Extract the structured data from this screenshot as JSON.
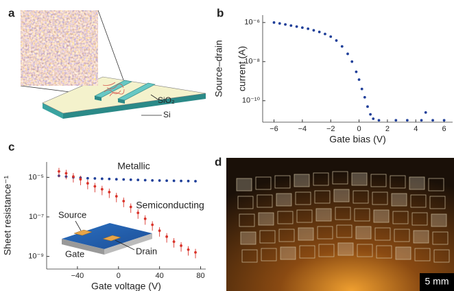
{
  "panel_labels": [
    "a",
    "b",
    "c",
    "d"
  ],
  "diagram_a": {
    "labels": [
      "SiO₂",
      "Si"
    ]
  },
  "inset_c": {
    "labels": [
      "Source",
      "Drain",
      "Gate"
    ]
  },
  "photo_d": {
    "scale_bar": "5 mm"
  },
  "chart_data": [
    {
      "type": "scatter",
      "log_y": true,
      "x_label": "Gate bias (V)",
      "y_label": [
        "Source–drain",
        "current (A)"
      ],
      "xlim": [
        -6.8,
        6.6
      ],
      "ylim": [
        8e-12,
        2.4e-06
      ],
      "xticks": [
        {
          "value": -6,
          "label": "−6"
        },
        {
          "value": -4,
          "label": "−4"
        },
        {
          "value": -2,
          "label": "−2"
        },
        0,
        2,
        4,
        6
      ],
      "yticks": [
        {
          "value": 1e-10,
          "label": "10⁻¹⁰"
        },
        {
          "value": 1e-08,
          "label": "10⁻⁸"
        },
        {
          "value": 1e-06,
          "label": "10⁻⁶"
        }
      ],
      "series": [
        {
          "color": "#1f3f99",
          "x": [
            -6,
            -5.6,
            -5.2,
            -4.8,
            -4.4,
            -4,
            -3.6,
            -3.2,
            -2.8,
            -2.4,
            -2,
            -1.6,
            -1.2,
            -0.8,
            -0.5,
            -0.2,
            0,
            0.2,
            0.4,
            0.6,
            0.8,
            1,
            1.4,
            2.6,
            3.4,
            4.4,
            4.7,
            5.2,
            6
          ],
          "values": [
            1e-06,
            9e-07,
            8e-07,
            7e-07,
            6.2e-07,
            5.5e-07,
            4.8e-07,
            4e-07,
            3.3e-07,
            2.6e-07,
            1.9e-07,
            1.2e-07,
            6e-08,
            2.5e-08,
            1e-08,
            3e-09,
            1.2e-09,
            4e-10,
            1.5e-10,
            5e-11,
            2e-11,
            1.2e-11,
            1e-11,
            1e-11,
            1e-11,
            1e-11,
            2.5e-11,
            1e-11,
            1e-11
          ]
        }
      ]
    },
    {
      "type": "scatter",
      "log_y": true,
      "x_label": "Gate voltage (V)",
      "y_label": [
        "Sheet resistance⁻¹"
      ],
      "xlim": [
        -70,
        85
      ],
      "ylim": [
        2.3e-10,
        6e-05
      ],
      "xticks": [
        {
          "value": -40,
          "label": "−40"
        },
        0,
        40,
        80
      ],
      "yticks": [
        {
          "value": 1e-09,
          "label": "10⁻⁹"
        },
        {
          "value": 1e-07,
          "label": "10⁻⁷"
        },
        {
          "value": 1e-05,
          "label": "10⁻⁵"
        }
      ],
      "series": [
        {
          "name": "Metallic",
          "color": "#1f3f99",
          "x": [
            -58,
            -51,
            -44,
            -37,
            -30,
            -23,
            -16,
            -9,
            -2,
            5,
            12,
            19,
            26,
            33,
            40,
            47,
            54,
            61,
            68,
            75
          ],
          "values": [
            1.2e-05,
            1.1e-05,
            1e-05,
            9.5e-06,
            9e-06,
            8.8e-06,
            8.5e-06,
            8.3e-06,
            8e-06,
            7.8e-06,
            7.6e-06,
            7.4e-06,
            7.2e-06,
            7e-06,
            6.9e-06,
            6.8e-06,
            6.7e-06,
            6.6e-06,
            6.5e-06,
            6.4e-06
          ]
        },
        {
          "name": "Semiconducting",
          "color": "#d9342b",
          "x": [
            -58,
            -51,
            -44,
            -37,
            -30,
            -23,
            -16,
            -9,
            -2,
            5,
            12,
            19,
            26,
            33,
            40,
            47,
            54,
            61,
            68,
            75
          ],
          "values": [
            2e-05,
            1.6e-05,
            1.1e-05,
            8e-06,
            5e-06,
            3.5e-06,
            2.5e-06,
            1.8e-06,
            1.1e-06,
            6.3e-07,
            3.2e-07,
            1.6e-07,
            8e-08,
            4e-08,
            2e-08,
            1e-08,
            5.6e-09,
            3.5e-09,
            2.2e-09,
            1.6e-09
          ],
          "errors": [
            1e-05,
            8e-06,
            5.5e-06,
            4e-06,
            2.5e-06,
            1.75e-06,
            1.25e-06,
            9e-07,
            5.5e-07,
            3.2e-07,
            1.6e-07,
            8e-08,
            4e-08,
            2e-08,
            1e-08,
            5e-09,
            2.8e-09,
            1.75e-09,
            1.1e-09,
            8e-10
          ]
        }
      ]
    }
  ]
}
